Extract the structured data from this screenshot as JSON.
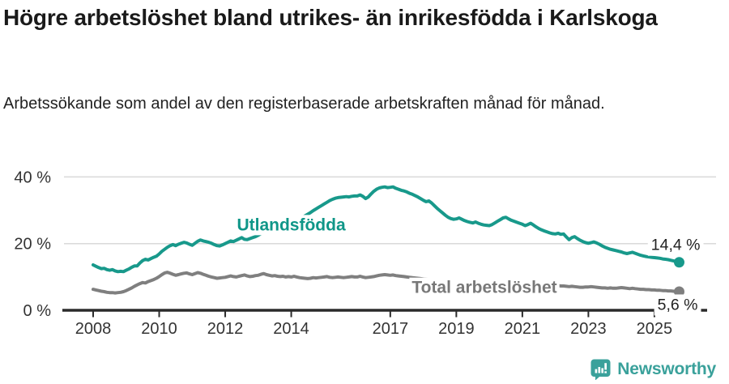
{
  "header": {
    "title": "Högre arbetslöshet bland utrikes- än inrikesfödda i Karlskoga",
    "subtitle": "Arbetssökande som andel av den registerbaserade arbetskraften månad för månad."
  },
  "chart_data": {
    "type": "line",
    "title": "Högre arbetslöshet bland utrikes- än inrikesfödda i Karlskoga",
    "xlabel": "",
    "ylabel": "",
    "ylim": [
      0,
      43
    ],
    "grid": "horizontal",
    "gridlines": [
      20,
      40
    ],
    "yticks": [
      {
        "value": 0,
        "label": "0 %"
      },
      {
        "value": 20,
        "label": "20 %"
      },
      {
        "value": 40,
        "label": "40 %"
      }
    ],
    "xticks": [
      2008,
      2010,
      2012,
      2014,
      2017,
      2019,
      2021,
      2023,
      2025
    ],
    "start_year": 2008,
    "interval": "monthly",
    "series": [
      {
        "name": "Utlandsfödda",
        "color": "#18998b",
        "label_color": "#0f9688",
        "label_at": {
          "year": 2014.0,
          "pct": 25.8
        },
        "end_label": {
          "text": "14,4 %",
          "side": "above"
        },
        "last_value": 14.4,
        "values": [
          13.6,
          13.2,
          12.8,
          12.5,
          12.6,
          12.2,
          12.0,
          12.2,
          11.8,
          11.6,
          11.7,
          11.6,
          12.0,
          12.4,
          12.9,
          13.3,
          13.3,
          14.2,
          14.9,
          15.3,
          15.1,
          15.5,
          15.9,
          16.2,
          16.9,
          17.7,
          18.3,
          18.9,
          19.4,
          19.7,
          19.4,
          19.8,
          20.1,
          20.4,
          20.2,
          19.8,
          19.5,
          20.1,
          20.7,
          21.1,
          20.8,
          20.6,
          20.4,
          20.1,
          19.7,
          19.4,
          19.3,
          19.6,
          20.0,
          20.4,
          20.8,
          20.6,
          21.0,
          21.4,
          21.8,
          21.3,
          21.2,
          21.5,
          21.8,
          22.1,
          22.5,
          23.0,
          23.5,
          23.9,
          24.2,
          24.0,
          24.3,
          24.6,
          24.4,
          24.8,
          25.1,
          25.5,
          26.0,
          26.5,
          27.0,
          27.4,
          27.8,
          28.3,
          28.8,
          29.3,
          29.9,
          30.4,
          30.9,
          31.4,
          31.9,
          32.4,
          32.9,
          33.3,
          33.6,
          33.8,
          33.9,
          34.0,
          34.1,
          34.0,
          34.2,
          34.3,
          34.3,
          34.6,
          34.2,
          33.5,
          34.0,
          34.9,
          35.7,
          36.3,
          36.7,
          36.9,
          37.0,
          36.8,
          36.9,
          37.0,
          36.6,
          36.3,
          36.0,
          35.8,
          35.5,
          35.1,
          34.8,
          34.4,
          34.0,
          33.5,
          33.0,
          32.6,
          32.8,
          32.2,
          31.4,
          30.6,
          29.9,
          29.2,
          28.5,
          27.9,
          27.5,
          27.3,
          27.4,
          27.7,
          27.3,
          26.9,
          26.6,
          26.4,
          26.2,
          26.5,
          26.1,
          25.8,
          25.6,
          25.5,
          25.4,
          25.7,
          26.2,
          26.7,
          27.2,
          27.7,
          27.9,
          27.4,
          27.0,
          26.7,
          26.4,
          26.1,
          25.8,
          25.4,
          25.7,
          26.1,
          25.6,
          25.0,
          24.5,
          24.1,
          23.8,
          23.5,
          23.2,
          23.0,
          22.9,
          23.1,
          22.8,
          22.9,
          22.0,
          21.2,
          21.8,
          22.1,
          21.5,
          21.0,
          20.6,
          20.3,
          20.1,
          20.3,
          20.5,
          20.2,
          19.8,
          19.3,
          18.9,
          18.6,
          18.3,
          18.1,
          17.9,
          17.7,
          17.5,
          17.2,
          17.0,
          17.2,
          17.4,
          17.1,
          16.8,
          16.5,
          16.3,
          16.1,
          16.0,
          15.9,
          15.8,
          15.7,
          15.6,
          15.4,
          15.3,
          15.2,
          15.0,
          14.8,
          14.6,
          14.4
        ]
      },
      {
        "name": "Total arbetslöshet",
        "color": "#7f7f7f",
        "label_color": "#787878",
        "label_at": {
          "year": 2019.85,
          "pct": 7.0
        },
        "end_label": {
          "text": "5,6 %",
          "side": "below"
        },
        "last_value": 5.6,
        "values": [
          6.3,
          6.1,
          5.9,
          5.7,
          5.6,
          5.4,
          5.3,
          5.3,
          5.2,
          5.3,
          5.4,
          5.6,
          5.9,
          6.3,
          6.7,
          7.2,
          7.6,
          8.0,
          8.3,
          8.2,
          8.6,
          8.9,
          9.2,
          9.6,
          10.1,
          10.7,
          11.2,
          11.4,
          11.1,
          10.8,
          10.5,
          10.7,
          10.9,
          11.1,
          11.2,
          10.9,
          10.7,
          11.0,
          11.3,
          11.1,
          10.8,
          10.5,
          10.2,
          10.0,
          9.8,
          9.6,
          9.7,
          9.8,
          9.9,
          10.1,
          10.3,
          10.1,
          10.0,
          10.2,
          10.4,
          10.6,
          10.3,
          10.1,
          10.2,
          10.4,
          10.5,
          10.8,
          11.0,
          10.7,
          10.5,
          10.3,
          10.4,
          10.2,
          10.1,
          10.2,
          10.0,
          10.1,
          10.0,
          10.2,
          10.0,
          9.8,
          9.7,
          9.6,
          9.5,
          9.6,
          9.8,
          9.7,
          9.8,
          9.9,
          10.0,
          10.1,
          9.9,
          9.8,
          9.9,
          10.0,
          9.9,
          9.8,
          9.9,
          10.0,
          10.1,
          10.0,
          10.0,
          10.2,
          10.0,
          9.8,
          9.9,
          10.0,
          10.1,
          10.3,
          10.5,
          10.6,
          10.7,
          10.6,
          10.5,
          10.6,
          10.4,
          10.3,
          10.2,
          10.1,
          10.0,
          9.9,
          9.8,
          9.7,
          9.6,
          9.5,
          9.4,
          9.3,
          9.2,
          9.1,
          9.0,
          8.9,
          8.8,
          8.7,
          8.6,
          8.5,
          8.5,
          8.4,
          8.4,
          8.4,
          8.3,
          8.3,
          8.2,
          8.2,
          8.2,
          8.1,
          8.1,
          8.1,
          8.1,
          8.1,
          8.2,
          8.3,
          8.5,
          8.7,
          8.9,
          9.0,
          9.1,
          9.0,
          8.9,
          8.8,
          8.7,
          8.6,
          8.5,
          8.4,
          8.3,
          8.2,
          8.1,
          8.0,
          7.9,
          7.8,
          7.7,
          7.6,
          7.5,
          7.5,
          7.4,
          7.4,
          7.3,
          7.3,
          7.2,
          7.1,
          7.2,
          7.1,
          7.0,
          6.9,
          6.9,
          7.0,
          7.0,
          7.1,
          7.0,
          6.9,
          6.8,
          6.7,
          6.7,
          6.6,
          6.7,
          6.6,
          6.6,
          6.7,
          6.8,
          6.7,
          6.6,
          6.5,
          6.6,
          6.5,
          6.4,
          6.3,
          6.3,
          6.2,
          6.2,
          6.1,
          6.1,
          6.0,
          6.0,
          5.9,
          5.9,
          5.8,
          5.8,
          5.7,
          5.6,
          5.6
        ]
      }
    ],
    "legend_position": "inline-labels"
  },
  "footer": {
    "brand": "Newsworthy",
    "logo_icon": "bar-chart-speech-bubble-icon"
  },
  "colors": {
    "accent_teal": "#18998b",
    "series_gray": "#7f7f7f",
    "axis": "#2b2b2b",
    "axis_text": "#333333",
    "grid": "#d9d9d9",
    "text": "#1a1a1a",
    "logo_teal": "#3aa19b"
  }
}
